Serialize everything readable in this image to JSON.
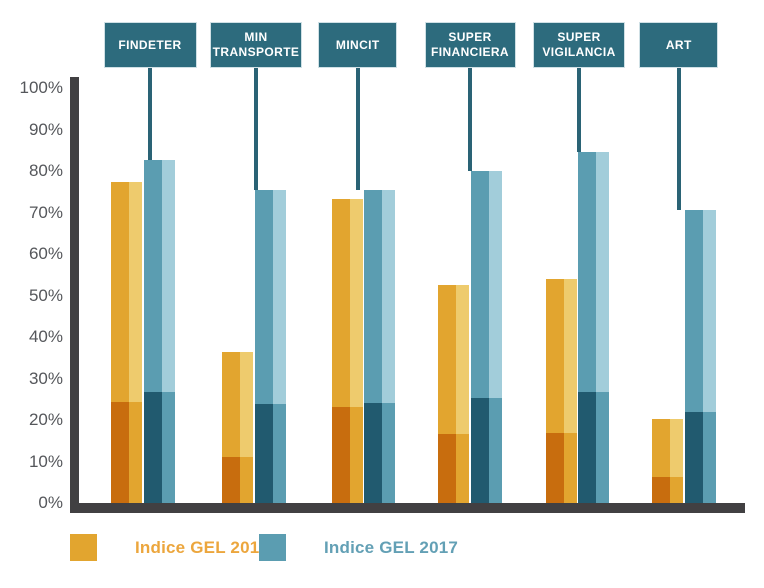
{
  "chart_data": {
    "type": "bar",
    "title": "",
    "xlabel": "",
    "ylabel": "",
    "ylim": [
      0,
      100
    ],
    "grid": false,
    "legend_position": "bottom",
    "yticks": [
      "0%",
      "10%",
      "20%",
      "30%",
      "40%",
      "50%",
      "60%",
      "70%",
      "80%",
      "90%",
      "100%"
    ],
    "categories": [
      "FINDETER",
      "MIN TRANSPORTE",
      "MINCIT",
      "SUPER FINANCIERA",
      "SUPER VIGILANCIA",
      "ART"
    ],
    "category_lines": [
      [
        "FINDETER"
      ],
      [
        "MIN",
        "TRANSPORTE"
      ],
      [
        "MINCIT"
      ],
      [
        "SUPER",
        "FINANCIERA"
      ],
      [
        "SUPER",
        "VIGILANCIA"
      ],
      [
        "ART"
      ]
    ],
    "series": [
      {
        "name": "Indice GEL 2016",
        "values": [
          77.4,
          36.3,
          73.2,
          52.6,
          53.9,
          20.2
        ],
        "base_segment_values": [
          24.4,
          11.2,
          23.1,
          16.6,
          16.9,
          6.2
        ],
        "colors": {
          "main": "#e2a52f",
          "light": "#eecb6d",
          "dark": "#c86d0e"
        }
      },
      {
        "name": "Indice GEL 2017",
        "values": [
          82.7,
          75.5,
          75.4,
          79.9,
          84.5,
          70.7
        ],
        "base_segment_values": [
          26.7,
          23.8,
          24.0,
          25.3,
          26.7,
          22.0
        ],
        "colors": {
          "main": "#5b9db1",
          "light": "#a2cdda",
          "dark": "#215a6f"
        }
      }
    ],
    "palette": {
      "label_box": "#2d6b7d",
      "connector": "#2a6375",
      "axis": "#414042",
      "tick_text": "#55575b",
      "legend_2016_text": "#eca63d",
      "legend_2017_text": "#63a0b5"
    }
  },
  "legend": {
    "items": [
      {
        "label": "Indice GEL 2016"
      },
      {
        "label": "Indice GEL 2017"
      }
    ]
  }
}
